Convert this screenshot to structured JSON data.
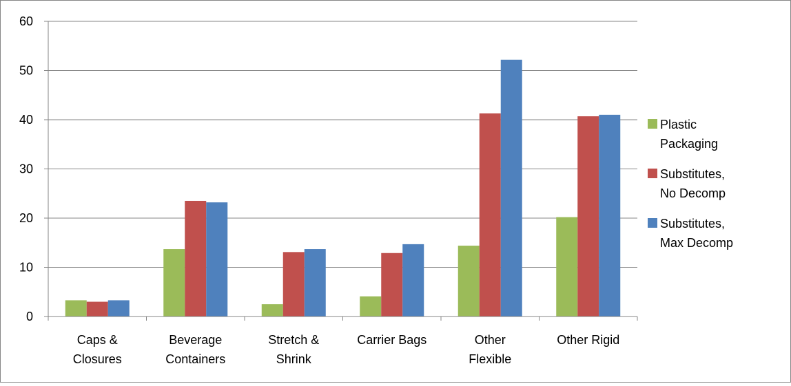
{
  "chart_data": {
    "type": "bar",
    "title": "",
    "xlabel": "",
    "ylabel": "",
    "categories": [
      [
        "Caps &",
        "Closures"
      ],
      [
        "Beverage",
        "Containers"
      ],
      [
        "Stretch &",
        "Shrink"
      ],
      [
        "Carrier Bags"
      ],
      [
        "Other",
        "Flexible"
      ],
      [
        "Other Rigid"
      ]
    ],
    "series": [
      {
        "name": [
          "Plastic",
          "Packaging"
        ],
        "color": "#9BBB59",
        "values": [
          3.3,
          13.7,
          2.5,
          4.1,
          14.4,
          20.2
        ]
      },
      {
        "name": [
          "Substitutes,",
          "No Decomp"
        ],
        "color": "#C0504D",
        "values": [
          3.0,
          23.5,
          13.1,
          12.9,
          41.3,
          40.7
        ]
      },
      {
        "name": [
          "Substitutes,",
          "Max Decomp"
        ],
        "color": "#4F81BD",
        "values": [
          3.3,
          23.2,
          13.7,
          14.7,
          52.2,
          41.0
        ]
      }
    ],
    "ylim": [
      0,
      60
    ],
    "yticks": [
      0,
      10,
      20,
      30,
      40,
      50,
      60
    ],
    "grid": true,
    "legend_position": "right"
  }
}
